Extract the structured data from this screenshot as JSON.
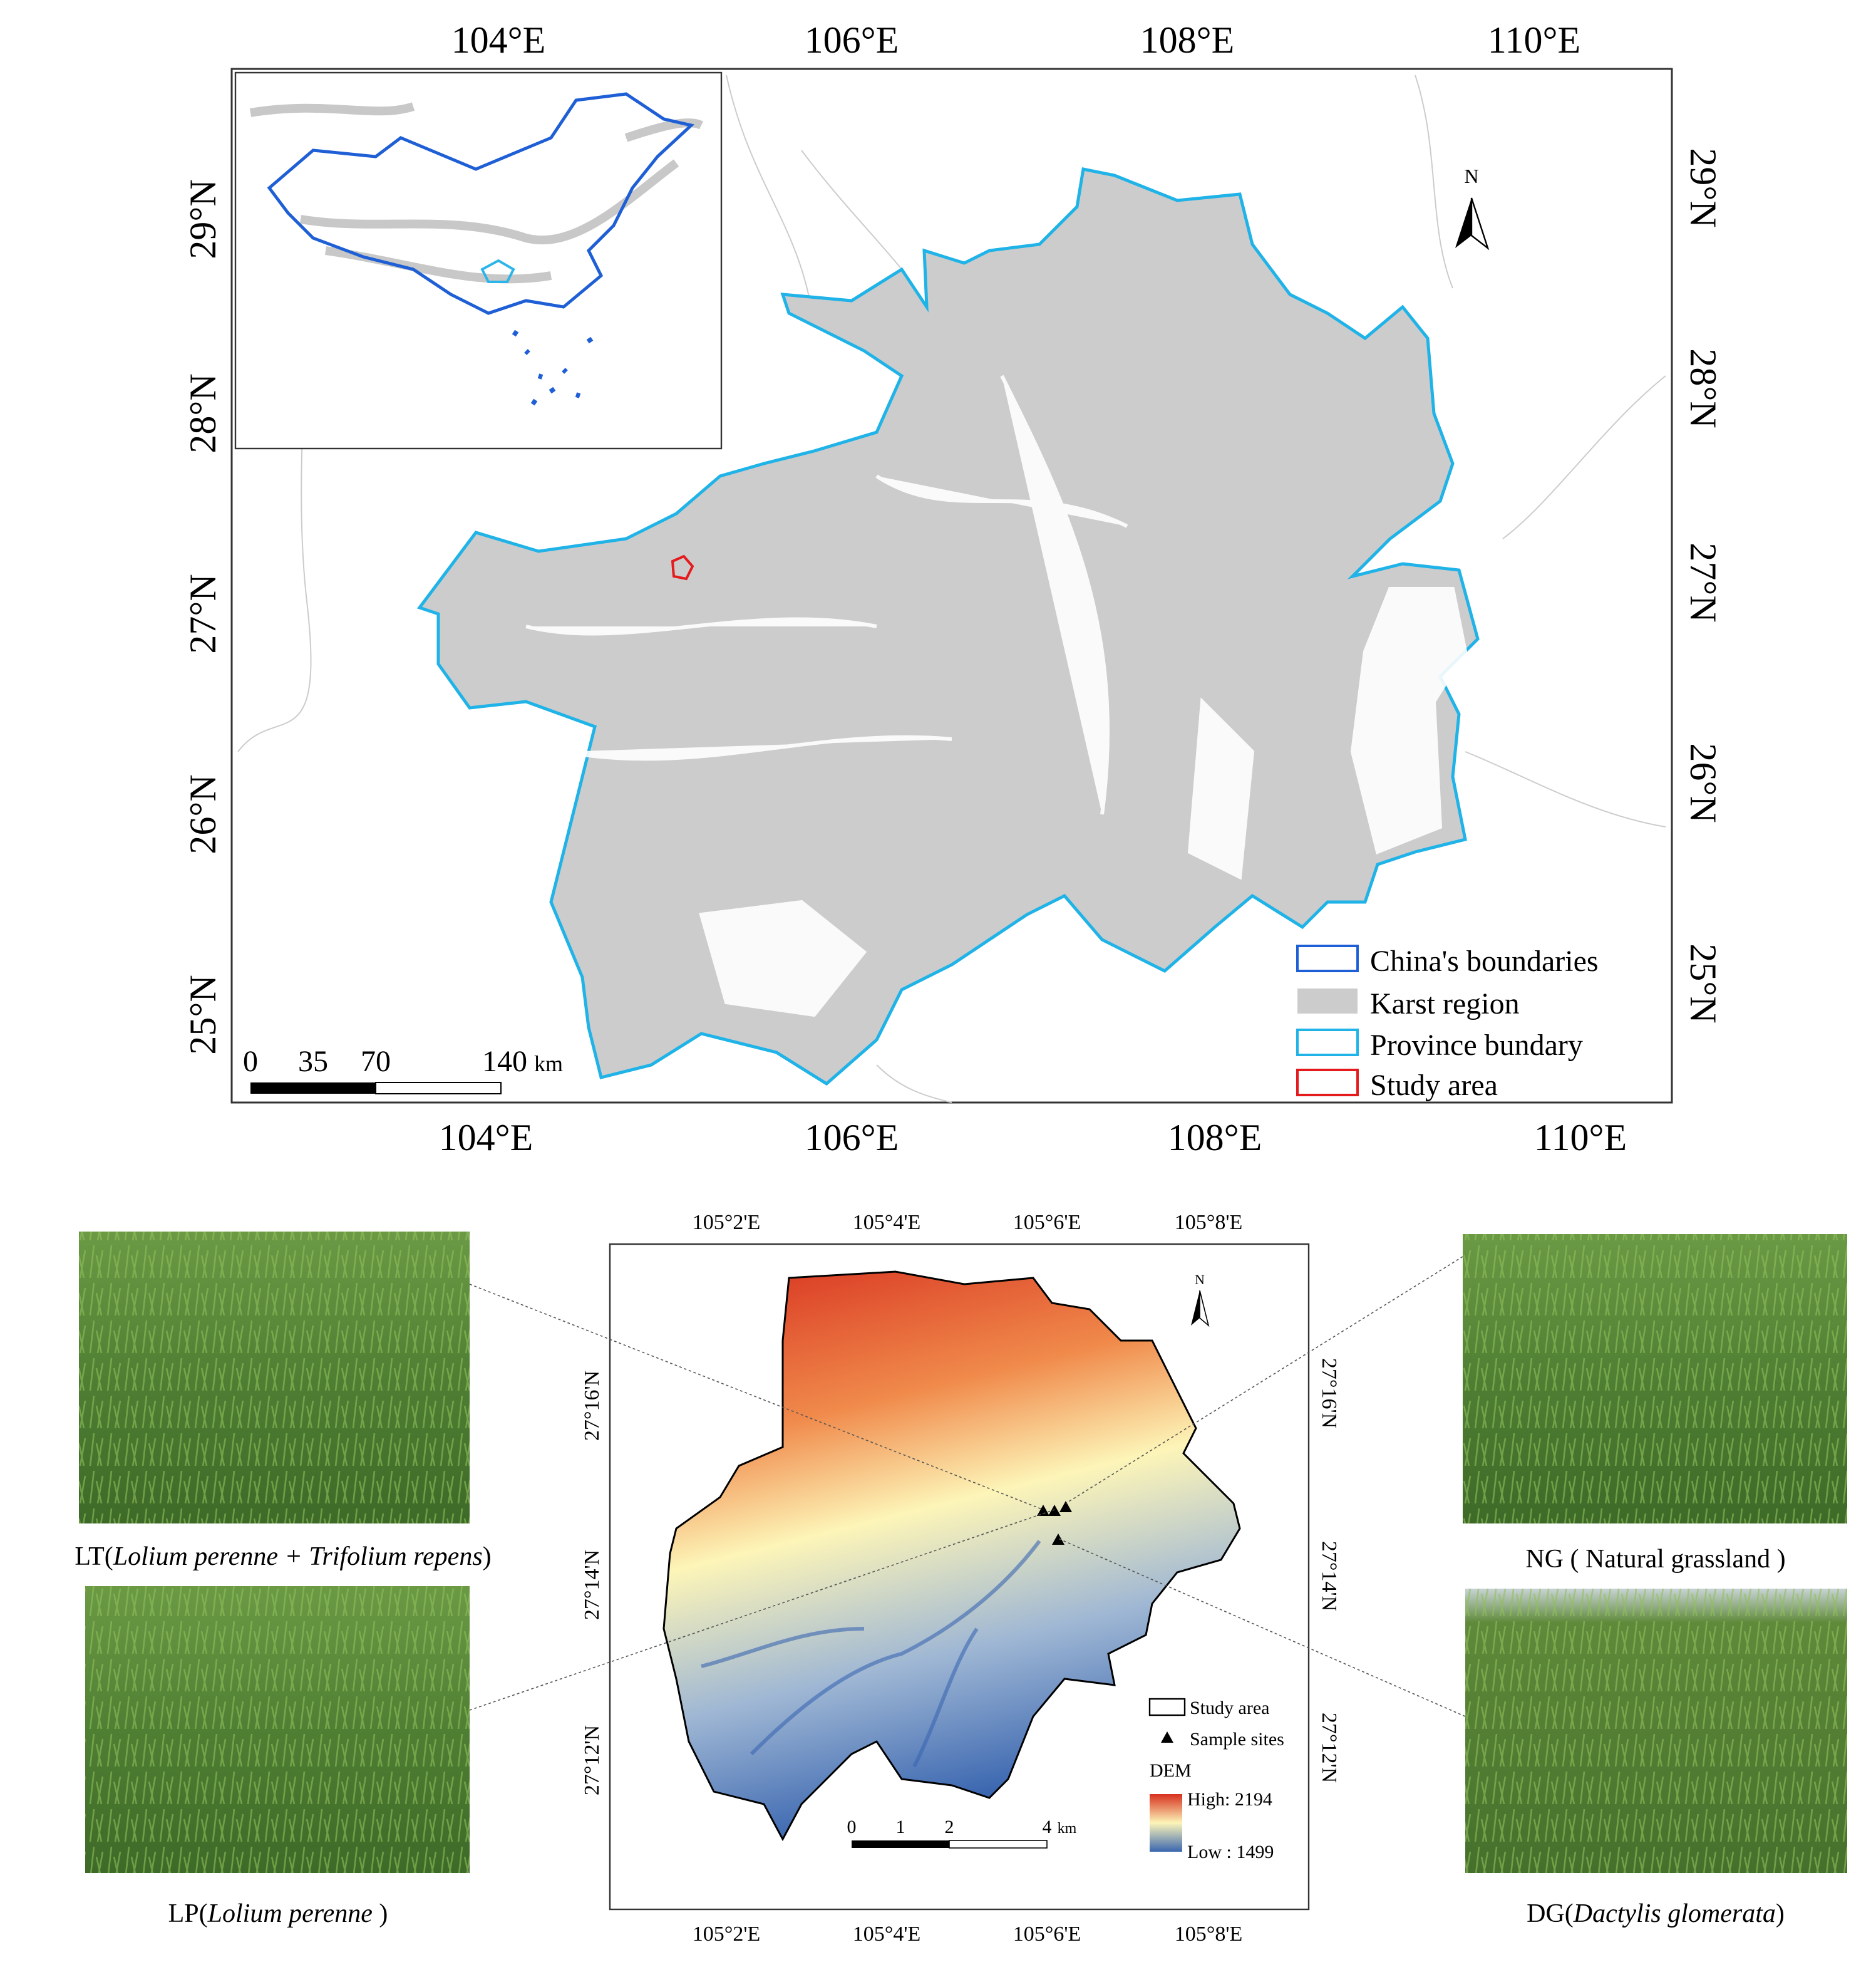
{
  "main_map": {
    "top_lon_labels": [
      "104°E",
      "106°E",
      "108°E",
      "110°E"
    ],
    "bottom_lon_labels": [
      "104°E",
      "106°E",
      "108°E",
      "110°E"
    ],
    "left_lat_labels": [
      "29°N",
      "28°N",
      "27°N",
      "26°N",
      "25°N"
    ],
    "right_lat_labels": [
      "29°N",
      "28°N",
      "27°N",
      "26°N",
      "25°N"
    ],
    "north": "N",
    "scale_bar": {
      "labels": [
        "0",
        "35",
        "70",
        "140"
      ],
      "unit": "km"
    },
    "legend": [
      "China's boundaries",
      "Karst region",
      "Province bundary",
      "Study area"
    ]
  },
  "study_map": {
    "top_lon_labels": [
      "105°2'E",
      "105°4'E",
      "105°6'E",
      "105°8'E"
    ],
    "bottom_lon_labels": [
      "105°2'E",
      "105°4'E",
      "105°6'E",
      "105°8'E"
    ],
    "left_lat_labels": [
      "27°16'N",
      "27°14'N",
      "27°12'N"
    ],
    "right_lat_labels": [
      "27°16'N",
      "27°14'N",
      "27°12'N"
    ],
    "north": "N",
    "scale_bar": {
      "labels": [
        "0",
        "1",
        "2",
        "4"
      ],
      "unit": "km"
    },
    "legend": {
      "study_area": "Study area",
      "sample_sites": "Sample sites",
      "dem_title": "DEM",
      "high": "High: 2194",
      "low": "Low : 1499"
    }
  },
  "photos": [
    {
      "caption_parts": [
        "LT(",
        "Lolium perenne + Trifolium repens",
        ")"
      ]
    },
    {
      "caption_parts": [
        "NG ( Natural grassland )"
      ]
    },
    {
      "caption_parts": [
        "LP(",
        "Lolium perenne",
        " )"
      ]
    },
    {
      "caption_parts": [
        "DG(",
        "Dactylis glomerata",
        ")"
      ]
    }
  ]
}
